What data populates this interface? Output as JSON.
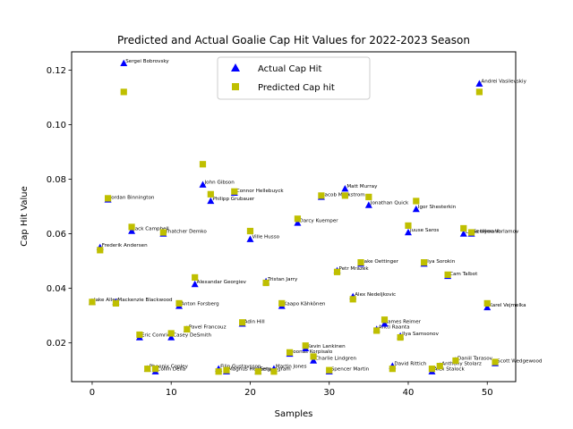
{
  "chart_data": {
    "type": "scatter",
    "title": "Predicted and Actual Goalie Cap Hit Values for 2022-2023 Season",
    "xlabel": "Samples",
    "ylabel": "Cap Hit Value",
    "xlim": [
      -2.6,
      53.6
    ],
    "ylim": [
      0.0058,
      0.1267
    ],
    "x_ticks": [
      0,
      10,
      20,
      30,
      40,
      50
    ],
    "y_ticks": [
      0.02,
      0.04,
      0.06,
      0.08,
      0.1,
      0.12
    ],
    "y_tick_labels": [
      "0.02",
      "0.04",
      "0.06",
      "0.08",
      "0.10",
      "0.12"
    ],
    "legend_position": "upper center",
    "grid": false,
    "series": [
      {
        "name": "Actual Cap Hit",
        "marker": "triangle",
        "color": "#0000ff",
        "points": [
          {
            "x": 0,
            "y": 0.035
          },
          {
            "x": 1,
            "y": 0.055
          },
          {
            "x": 2,
            "y": 0.0725
          },
          {
            "x": 3,
            "y": 0.035
          },
          {
            "x": 4,
            "y": 0.1225
          },
          {
            "x": 5,
            "y": 0.061
          },
          {
            "x": 6,
            "y": 0.022
          },
          {
            "x": 7,
            "y": 0.0105
          },
          {
            "x": 8,
            "y": 0.0095
          },
          {
            "x": 9,
            "y": 0.06
          },
          {
            "x": 10,
            "y": 0.022
          },
          {
            "x": 11,
            "y": 0.0335
          },
          {
            "x": 12,
            "y": 0.025
          },
          {
            "x": 13,
            "y": 0.0415
          },
          {
            "x": 14,
            "y": 0.078
          },
          {
            "x": 15,
            "y": 0.072
          },
          {
            "x": 16,
            "y": 0.0105
          },
          {
            "x": 17,
            "y": 0.0095
          },
          {
            "x": 18,
            "y": 0.075
          },
          {
            "x": 19,
            "y": 0.027
          },
          {
            "x": 20,
            "y": 0.058
          },
          {
            "x": 21,
            "y": 0.0095
          },
          {
            "x": 22,
            "y": 0.0425
          },
          {
            "x": 23,
            "y": 0.0105
          },
          {
            "x": 24,
            "y": 0.0335
          },
          {
            "x": 25,
            "y": 0.016
          },
          {
            "x": 26,
            "y": 0.064
          },
          {
            "x": 27,
            "y": 0.018
          },
          {
            "x": 28,
            "y": 0.0135
          },
          {
            "x": 29,
            "y": 0.0735
          },
          {
            "x": 30,
            "y": 0.0095
          },
          {
            "x": 31,
            "y": 0.0465
          },
          {
            "x": 32,
            "y": 0.0765
          },
          {
            "x": 33,
            "y": 0.037
          },
          {
            "x": 34,
            "y": 0.049
          },
          {
            "x": 35,
            "y": 0.0705
          },
          {
            "x": 36,
            "y": 0.025
          },
          {
            "x": 37,
            "y": 0.027
          },
          {
            "x": 38,
            "y": 0.0115
          },
          {
            "x": 39,
            "y": 0.0225
          },
          {
            "x": 40,
            "y": 0.0605
          },
          {
            "x": 41,
            "y": 0.069
          },
          {
            "x": 42,
            "y": 0.049
          },
          {
            "x": 43,
            "y": 0.0095
          },
          {
            "x": 44,
            "y": 0.0115
          },
          {
            "x": 45,
            "y": 0.0445
          },
          {
            "x": 46,
            "y": 0.0135
          },
          {
            "x": 47,
            "y": 0.06
          },
          {
            "x": 48,
            "y": 0.06
          },
          {
            "x": 49,
            "y": 0.115
          },
          {
            "x": 50,
            "y": 0.033
          },
          {
            "x": 51,
            "y": 0.0125
          }
        ]
      },
      {
        "name": "Predicted Cap hit",
        "marker": "square",
        "color": "#bfbf00",
        "points": [
          {
            "x": 0,
            "y": 0.035
          },
          {
            "x": 1,
            "y": 0.054
          },
          {
            "x": 2,
            "y": 0.073
          },
          {
            "x": 3,
            "y": 0.0345
          },
          {
            "x": 4,
            "y": 0.112
          },
          {
            "x": 5,
            "y": 0.0625
          },
          {
            "x": 6,
            "y": 0.023
          },
          {
            "x": 7,
            "y": 0.0105
          },
          {
            "x": 8,
            "y": 0.0105
          },
          {
            "x": 9,
            "y": 0.0605
          },
          {
            "x": 10,
            "y": 0.0235
          },
          {
            "x": 11,
            "y": 0.0345
          },
          {
            "x": 12,
            "y": 0.025
          },
          {
            "x": 13,
            "y": 0.044
          },
          {
            "x": 14,
            "y": 0.0855
          },
          {
            "x": 15,
            "y": 0.0745
          },
          {
            "x": 16,
            "y": 0.0095
          },
          {
            "x": 17,
            "y": 0.01
          },
          {
            "x": 18,
            "y": 0.0755
          },
          {
            "x": 19,
            "y": 0.0275
          },
          {
            "x": 20,
            "y": 0.061
          },
          {
            "x": 21,
            "y": 0.0095
          },
          {
            "x": 22,
            "y": 0.042
          },
          {
            "x": 23,
            "y": 0.0095
          },
          {
            "x": 24,
            "y": 0.0345
          },
          {
            "x": 25,
            "y": 0.0165
          },
          {
            "x": 26,
            "y": 0.0655
          },
          {
            "x": 27,
            "y": 0.019
          },
          {
            "x": 28,
            "y": 0.015
          },
          {
            "x": 29,
            "y": 0.074
          },
          {
            "x": 30,
            "y": 0.01
          },
          {
            "x": 31,
            "y": 0.046
          },
          {
            "x": 32,
            "y": 0.074
          },
          {
            "x": 33,
            "y": 0.036
          },
          {
            "x": 34,
            "y": 0.0495
          },
          {
            "x": 35,
            "y": 0.0735
          },
          {
            "x": 36,
            "y": 0.0245
          },
          {
            "x": 37,
            "y": 0.0285
          },
          {
            "x": 38,
            "y": 0.0105
          },
          {
            "x": 39,
            "y": 0.022
          },
          {
            "x": 40,
            "y": 0.063
          },
          {
            "x": 41,
            "y": 0.072
          },
          {
            "x": 42,
            "y": 0.0495
          },
          {
            "x": 43,
            "y": 0.0105
          },
          {
            "x": 44,
            "y": 0.0115
          },
          {
            "x": 45,
            "y": 0.045
          },
          {
            "x": 46,
            "y": 0.0135
          },
          {
            "x": 47,
            "y": 0.062
          },
          {
            "x": 48,
            "y": 0.0605
          },
          {
            "x": 49,
            "y": 0.112
          },
          {
            "x": 50,
            "y": 0.0345
          },
          {
            "x": 51,
            "y": 0.013
          }
        ]
      }
    ],
    "point_labels": [
      "Jake Allen",
      "Frederik Andersen",
      "Jordan Binnington",
      "Mackenzie Blackwood",
      "Sergei Bobrovsky",
      "Jack Campbell",
      "Eric Comrie",
      "Pheonix Copley",
      "Collin Delia",
      "Thatcher Demko",
      "Casey DeSmith",
      "Anton Forsberg",
      "Pavel Francouz",
      "Alexandar Georgiev",
      "John Gibson",
      "Philipp Grubauer",
      "Filip Gustavsson",
      "Magnus Hellberg",
      "Connor Hellebuyck",
      "Adin Hill",
      "Ville Husso",
      "Eetu Ingram",
      "Tristan Jarry",
      "Martin Jones",
      "Kaapo Kähkönen",
      "Joonas Korpisalo",
      "Darcy Kuemper",
      "Kevin Lankinen",
      "Charlie Lindgren",
      "Jacob Markstrom",
      "Spencer Martin",
      "Petr Mrázek",
      "Matt Murray",
      "Alex Nedeljkovic",
      "Jake Oettinger",
      "Jonathan Quick",
      "Antti Raanta",
      "James Reimer",
      "David Rittich",
      "Ilya Samsonov",
      "Juuse Saros",
      "Igor Shesterkin",
      "Ilya Sorokin",
      "Alex Stalock",
      "Anthony Stolarz",
      "Cam Talbot",
      "Daniil Tarasov",
      "Linus Ullmark",
      "Semyon Varlamov",
      "Andrei Vasilevskiy",
      "Karel Vejmelka",
      "Scott Wedgewood"
    ]
  }
}
